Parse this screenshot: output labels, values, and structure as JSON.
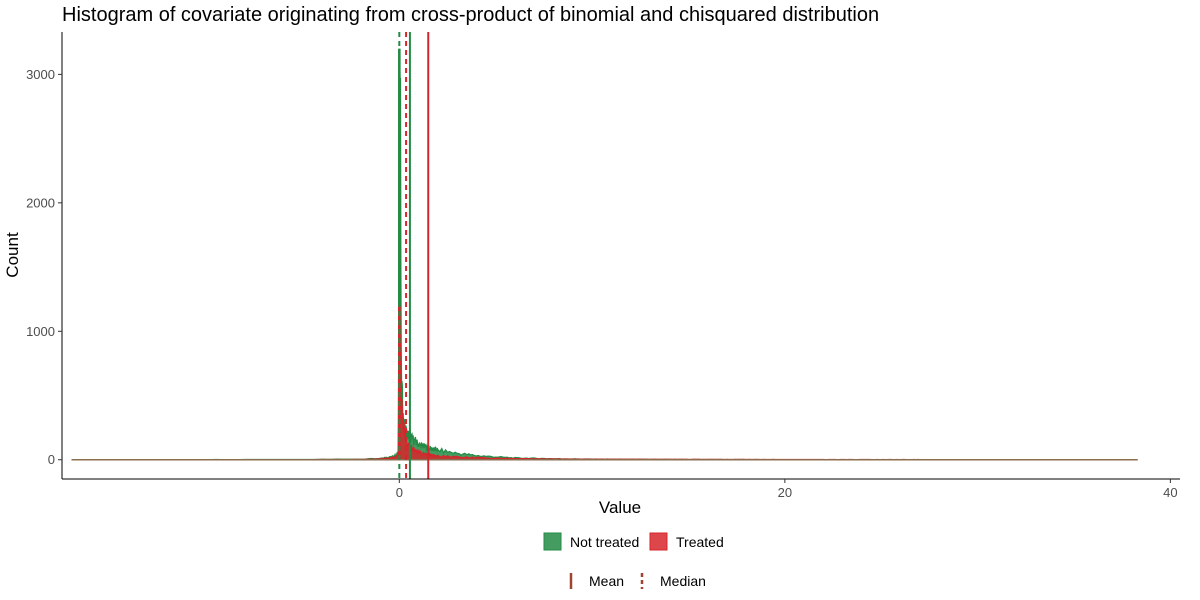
{
  "chart_data": {
    "type": "histogram",
    "title": "Histogram of covariate originating from cross-product of binomial and chisquared distribution",
    "xlabel": "Value",
    "ylabel": "Count",
    "xlim": [
      -17.5,
      40.5
    ],
    "ylim": [
      -150,
      3330
    ],
    "x_ticks": [
      0,
      20,
      40
    ],
    "y_ticks": [
      0,
      1000,
      2000,
      3000
    ],
    "x_tick_labels": [
      "0",
      "20",
      "40"
    ],
    "y_tick_labels": [
      "0",
      "1000",
      "2000",
      "3000"
    ],
    "range_min": -17.0,
    "range_max": 38.3,
    "series": [
      {
        "name": "Not treated",
        "color": "#238b45",
        "peak_x": 0.0,
        "peak_count": 3200,
        "profile": [
          [
            -17.0,
            0
          ],
          [
            -5.0,
            2
          ],
          [
            -2.0,
            5
          ],
          [
            -1.0,
            12
          ],
          [
            -0.5,
            20
          ],
          [
            -0.2,
            30
          ],
          [
            -0.05,
            60
          ],
          [
            0.0,
            3200
          ],
          [
            0.05,
            2900
          ],
          [
            0.1,
            700
          ],
          [
            0.2,
            300
          ],
          [
            0.4,
            200
          ],
          [
            0.7,
            160
          ],
          [
            1.0,
            120
          ],
          [
            1.5,
            90
          ],
          [
            2.0,
            75
          ],
          [
            3.0,
            50
          ],
          [
            4.0,
            32
          ],
          [
            5.0,
            22
          ],
          [
            6.0,
            14
          ],
          [
            8.0,
            8
          ],
          [
            10.0,
            5
          ],
          [
            15.0,
            2
          ],
          [
            20.0,
            1
          ],
          [
            38.3,
            0
          ]
        ],
        "mean": 0.55,
        "median": 0.0
      },
      {
        "name": "Treated",
        "color": "#d7262b",
        "peak_x": 0.0,
        "peak_count": 1200,
        "profile": [
          [
            -17.0,
            0
          ],
          [
            -5.0,
            1
          ],
          [
            -2.0,
            3
          ],
          [
            -1.0,
            7
          ],
          [
            -0.5,
            12
          ],
          [
            -0.2,
            20
          ],
          [
            -0.05,
            40
          ],
          [
            0.0,
            1200
          ],
          [
            0.05,
            900
          ],
          [
            0.1,
            500
          ],
          [
            0.2,
            300
          ],
          [
            0.4,
            120
          ],
          [
            0.7,
            80
          ],
          [
            1.0,
            55
          ],
          [
            1.5,
            40
          ],
          [
            2.0,
            30
          ],
          [
            3.0,
            22
          ],
          [
            4.0,
            16
          ],
          [
            5.0,
            12
          ],
          [
            6.0,
            9
          ],
          [
            8.0,
            6
          ],
          [
            10.0,
            4
          ],
          [
            15.0,
            3
          ],
          [
            20.0,
            2
          ],
          [
            30.0,
            1
          ],
          [
            38.3,
            0
          ]
        ],
        "mean": 1.5,
        "median": 0.35
      }
    ],
    "reference_lines": [
      {
        "series": "Not treated",
        "stat": "Mean",
        "x": 0.55,
        "color": "#238b45",
        "linetype": "solid"
      },
      {
        "series": "Not treated",
        "stat": "Median",
        "x": 0.0,
        "color": "#238b45",
        "linetype": "dashed"
      },
      {
        "series": "Treated",
        "stat": "Mean",
        "x": 1.5,
        "color": "#d7262b",
        "linetype": "solid"
      },
      {
        "series": "Treated",
        "stat": "Median",
        "x": 0.35,
        "color": "#d7262b",
        "linetype": "dashed"
      }
    ],
    "fill_legend": [
      {
        "label": "Not treated",
        "color": "#238b45"
      },
      {
        "label": "Treated",
        "color": "#d7262b"
      }
    ],
    "linetype_legend": [
      {
        "label": "Mean",
        "linetype": "solid",
        "color": "#a0432f"
      },
      {
        "label": "Median",
        "linetype": "dashed",
        "color": "#a0432f"
      }
    ],
    "legend_position": "bottom"
  }
}
